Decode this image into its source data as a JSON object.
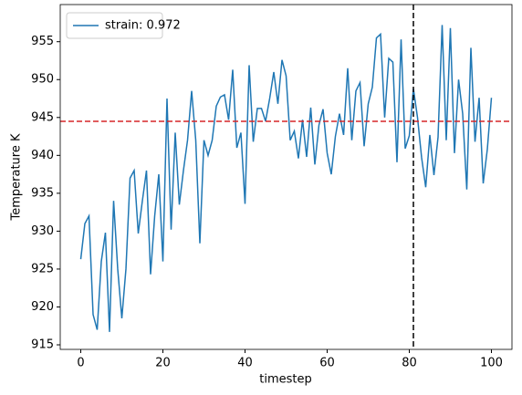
{
  "chart_data": {
    "type": "line",
    "x": [
      0,
      1,
      2,
      3,
      4,
      5,
      6,
      7,
      8,
      9,
      10,
      11,
      12,
      13,
      14,
      15,
      16,
      17,
      18,
      19,
      20,
      21,
      22,
      23,
      24,
      25,
      26,
      27,
      28,
      29,
      30,
      31,
      32,
      33,
      34,
      35,
      36,
      37,
      38,
      39,
      40,
      41,
      42,
      43,
      44,
      45,
      46,
      47,
      48,
      49,
      50,
      51,
      52,
      53,
      54,
      55,
      56,
      57,
      58,
      59,
      60,
      61,
      62,
      63,
      64,
      65,
      66,
      67,
      68,
      69,
      70,
      71,
      72,
      73,
      74,
      75,
      76,
      77,
      78,
      79,
      80,
      81,
      82,
      83,
      84,
      85,
      86,
      87,
      88,
      89,
      90,
      91,
      92,
      93,
      94,
      95,
      96,
      97,
      98,
      99,
      100
    ],
    "series": [
      {
        "name": "strain: 0.972",
        "color": "#1f77b4",
        "values": [
          926.3,
          931,
          932,
          919,
          917,
          926,
          929.8,
          916.7,
          934,
          925,
          918.5,
          925,
          937,
          938,
          929.7,
          934,
          938,
          924.3,
          932,
          937.5,
          926,
          947.5,
          930.2,
          943,
          933.5,
          938,
          942,
          948.5,
          942,
          928.4,
          942,
          940,
          942,
          946.5,
          947.7,
          948,
          944.7,
          951.3,
          941,
          943,
          933.6,
          951.9,
          941.8,
          946.2,
          946.2,
          944.5,
          947.5,
          951,
          946.8,
          952.6,
          950.5,
          942,
          943.2,
          939.6,
          944.7,
          939.8,
          946.3,
          938.8,
          944,
          946.1,
          940.3,
          937.5,
          942.5,
          945.5,
          942.7,
          951.5,
          942,
          948.5,
          949.6,
          941.2,
          946.8,
          949,
          955.5,
          956,
          945,
          952.8,
          952.3,
          939.1,
          955.3,
          940.9,
          942.6,
          948.8,
          945,
          939.7,
          935.8,
          942.7,
          937.4,
          942.4,
          957.2,
          942,
          956.8,
          940.3,
          950,
          945.5,
          935.5,
          954.2,
          941.8,
          947.6,
          936.3,
          940.8,
          947.6
        ]
      }
    ],
    "hlines": [
      {
        "value": 944.5,
        "color": "#d62728"
      }
    ],
    "vlines": [
      {
        "value": 81,
        "color": "#000000"
      }
    ],
    "xlabel": "timestep",
    "ylabel": "Temperature K",
    "xlim": [
      -5,
      105
    ],
    "ylim": [
      914.4,
      959.9
    ],
    "xticks": [
      0,
      20,
      40,
      60,
      80,
      100
    ],
    "yticks": [
      915,
      920,
      925,
      930,
      935,
      940,
      945,
      950,
      955
    ],
    "legend": "upper left"
  }
}
